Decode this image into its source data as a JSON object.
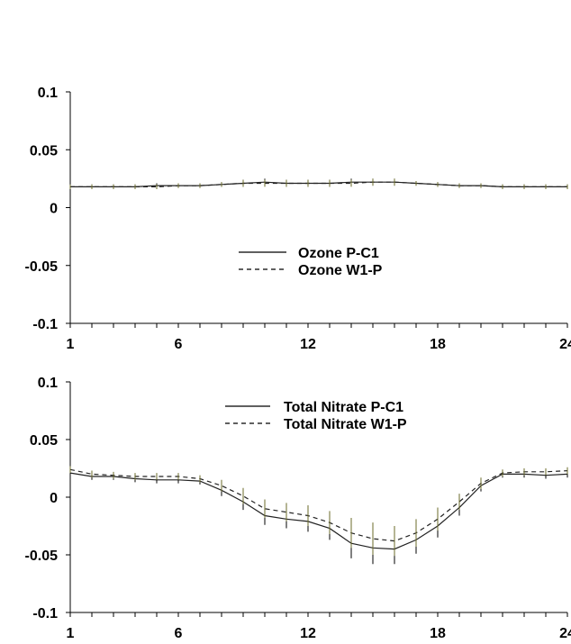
{
  "chart_data": [
    {
      "type": "line",
      "x": [
        1,
        2,
        3,
        4,
        5,
        6,
        7,
        8,
        9,
        10,
        11,
        12,
        13,
        14,
        15,
        16,
        17,
        18,
        19,
        20,
        21,
        22,
        23,
        24
      ],
      "xticks": [
        1,
        6,
        12,
        18,
        24
      ],
      "yticks": [
        -0.1,
        -0.05,
        0,
        0.05,
        0.1
      ],
      "ytick_labels": [
        "-0.1",
        "-0.05",
        "0",
        "0.05",
        "0.1"
      ],
      "xlim": [
        1,
        24
      ],
      "ylim": [
        -0.1,
        0.1
      ],
      "grid": false,
      "legend_position": "lower-center",
      "series": [
        {
          "name": "Ozone P-C1",
          "style": "solid",
          "values": [
            0.018,
            0.018,
            0.018,
            0.018,
            0.019,
            0.019,
            0.019,
            0.02,
            0.021,
            0.022,
            0.021,
            0.021,
            0.021,
            0.022,
            0.022,
            0.022,
            0.021,
            0.02,
            0.019,
            0.019,
            0.018,
            0.018,
            0.018,
            0.018
          ],
          "error": [
            0.002,
            0.002,
            0.002,
            0.002,
            0.002,
            0.002,
            0.002,
            0.002,
            0.003,
            0.003,
            0.003,
            0.003,
            0.003,
            0.003,
            0.003,
            0.003,
            0.002,
            0.002,
            0.002,
            0.002,
            0.002,
            0.002,
            0.002,
            0.002
          ]
        },
        {
          "name": "Ozone W1-P",
          "style": "dashed",
          "values": [
            0.018,
            0.018,
            0.018,
            0.018,
            0.018,
            0.019,
            0.019,
            0.02,
            0.021,
            0.021,
            0.021,
            0.021,
            0.021,
            0.021,
            0.022,
            0.022,
            0.021,
            0.02,
            0.019,
            0.019,
            0.018,
            0.018,
            0.018,
            0.018
          ],
          "error": [
            0.002,
            0.002,
            0.002,
            0.002,
            0.002,
            0.002,
            0.002,
            0.002,
            0.003,
            0.003,
            0.003,
            0.003,
            0.003,
            0.003,
            0.003,
            0.003,
            0.002,
            0.002,
            0.002,
            0.002,
            0.002,
            0.002,
            0.002,
            0.002
          ]
        }
      ]
    },
    {
      "type": "line",
      "x": [
        1,
        2,
        3,
        4,
        5,
        6,
        7,
        8,
        9,
        10,
        11,
        12,
        13,
        14,
        15,
        16,
        17,
        18,
        19,
        20,
        21,
        22,
        23,
        24
      ],
      "xticks": [
        1,
        6,
        12,
        18,
        24
      ],
      "yticks": [
        -0.1,
        -0.05,
        0,
        0.05,
        0.1
      ],
      "ytick_labels": [
        "-0.1",
        "-0.05",
        "0",
        "0.05",
        "0.1"
      ],
      "xlim": [
        1,
        24
      ],
      "ylim": [
        -0.1,
        0.1
      ],
      "grid": false,
      "legend_position": "top-center",
      "series": [
        {
          "name": "Total Nitrate P-C1",
          "style": "solid",
          "values": [
            0.021,
            0.018,
            0.018,
            0.016,
            0.015,
            0.015,
            0.014,
            0.006,
            -0.004,
            -0.016,
            -0.019,
            -0.021,
            -0.027,
            -0.04,
            -0.044,
            -0.045,
            -0.037,
            -0.025,
            -0.009,
            0.01,
            0.02,
            0.02,
            0.019,
            0.02
          ],
          "error": [
            0.003,
            0.003,
            0.003,
            0.003,
            0.003,
            0.003,
            0.003,
            0.005,
            0.007,
            0.008,
            0.008,
            0.009,
            0.01,
            0.013,
            0.014,
            0.013,
            0.012,
            0.01,
            0.007,
            0.005,
            0.003,
            0.003,
            0.003,
            0.003
          ]
        },
        {
          "name": "Total Nitrate W1-P",
          "style": "dashed",
          "values": [
            0.024,
            0.02,
            0.019,
            0.018,
            0.018,
            0.018,
            0.016,
            0.01,
            0.001,
            -0.01,
            -0.013,
            -0.016,
            -0.022,
            -0.031,
            -0.036,
            -0.038,
            -0.031,
            -0.019,
            -0.004,
            0.012,
            0.021,
            0.022,
            0.022,
            0.023
          ],
          "error": [
            0.003,
            0.003,
            0.003,
            0.003,
            0.003,
            0.003,
            0.003,
            0.005,
            0.007,
            0.008,
            0.008,
            0.009,
            0.01,
            0.013,
            0.014,
            0.013,
            0.012,
            0.01,
            0.007,
            0.005,
            0.003,
            0.003,
            0.003,
            0.003
          ]
        }
      ]
    }
  ]
}
